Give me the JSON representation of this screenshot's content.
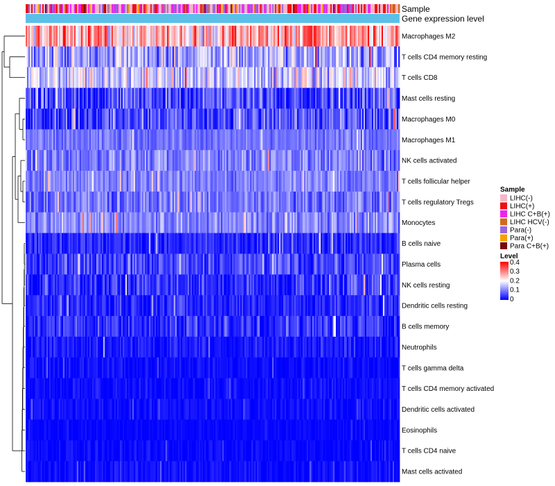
{
  "chart_data": {
    "type": "heatmap",
    "title": "",
    "value_range": [
      0,
      0.4
    ],
    "samples_count": 270,
    "rows": [
      {
        "name": "Macrophages M2",
        "mean": 0.26,
        "spread": 0.1
      },
      {
        "name": "T cells CD4 memory resting",
        "mean": 0.13,
        "spread": 0.08
      },
      {
        "name": "T cells CD8",
        "mean": 0.16,
        "spread": 0.08
      },
      {
        "name": "Mast cells resting",
        "mean": 0.06,
        "spread": 0.07
      },
      {
        "name": "Macrophages M0",
        "mean": 0.06,
        "spread": 0.07
      },
      {
        "name": "Macrophages M1",
        "mean": 0.09,
        "spread": 0.03
      },
      {
        "name": "NK cells activated",
        "mean": 0.1,
        "spread": 0.05
      },
      {
        "name": "T cells follicular helper",
        "mean": 0.1,
        "spread": 0.04
      },
      {
        "name": "T cells regulatory  Tregs",
        "mean": 0.09,
        "spread": 0.05
      },
      {
        "name": "Monocytes",
        "mean": 0.11,
        "spread": 0.05
      },
      {
        "name": "B cells naive",
        "mean": 0.03,
        "spread": 0.04
      },
      {
        "name": "Plasma cells",
        "mean": 0.05,
        "spread": 0.05
      },
      {
        "name": "NK cells resting",
        "mean": 0.04,
        "spread": 0.05
      },
      {
        "name": "Dendritic cells resting",
        "mean": 0.03,
        "spread": 0.04
      },
      {
        "name": "B cells memory",
        "mean": 0.04,
        "spread": 0.05
      },
      {
        "name": "Neutrophils",
        "mean": 0.02,
        "spread": 0.03
      },
      {
        "name": "T cells gamma delta",
        "mean": 0.01,
        "spread": 0.02
      },
      {
        "name": "T cells CD4 memory activated",
        "mean": 0.01,
        "spread": 0.02
      },
      {
        "name": "Dendritic cells activated",
        "mean": 0.01,
        "spread": 0.02
      },
      {
        "name": "Eosinophils",
        "mean": 0.005,
        "spread": 0.01
      },
      {
        "name": "T cells CD4 naive",
        "mean": 0.005,
        "spread": 0.02
      },
      {
        "name": "Mast cells activated",
        "mean": 0.01,
        "spread": 0.02
      }
    ],
    "annotations": {
      "sample_track_label": "Sample",
      "expression_track_label": "Gene expression level",
      "expression_track_color": "#5bbfe8"
    },
    "legend": {
      "sample_title": "Sample",
      "sample_entries": [
        {
          "label": "LIHC(-)",
          "color": "#f7b6c9"
        },
        {
          "label": "LIHC(+)",
          "color": "#ee1111"
        },
        {
          "label": "LIHC C+B(+)",
          "color": "#ee22ee"
        },
        {
          "label": "LIHC HCV(-)",
          "color": "#d2691e"
        },
        {
          "label": "Para(-)",
          "color": "#9966dd"
        },
        {
          "label": "Para(+)",
          "color": "#f5a000"
        },
        {
          "label": "Para C+B(+)",
          "color": "#7a0a0a"
        }
      ],
      "level_title": "Level",
      "level_ticks": [
        "0.4",
        "0.3",
        "0.2",
        "0.1",
        "0"
      ],
      "level_colors": [
        "#0000ff",
        "#ffffff",
        "#ff0000"
      ]
    }
  }
}
